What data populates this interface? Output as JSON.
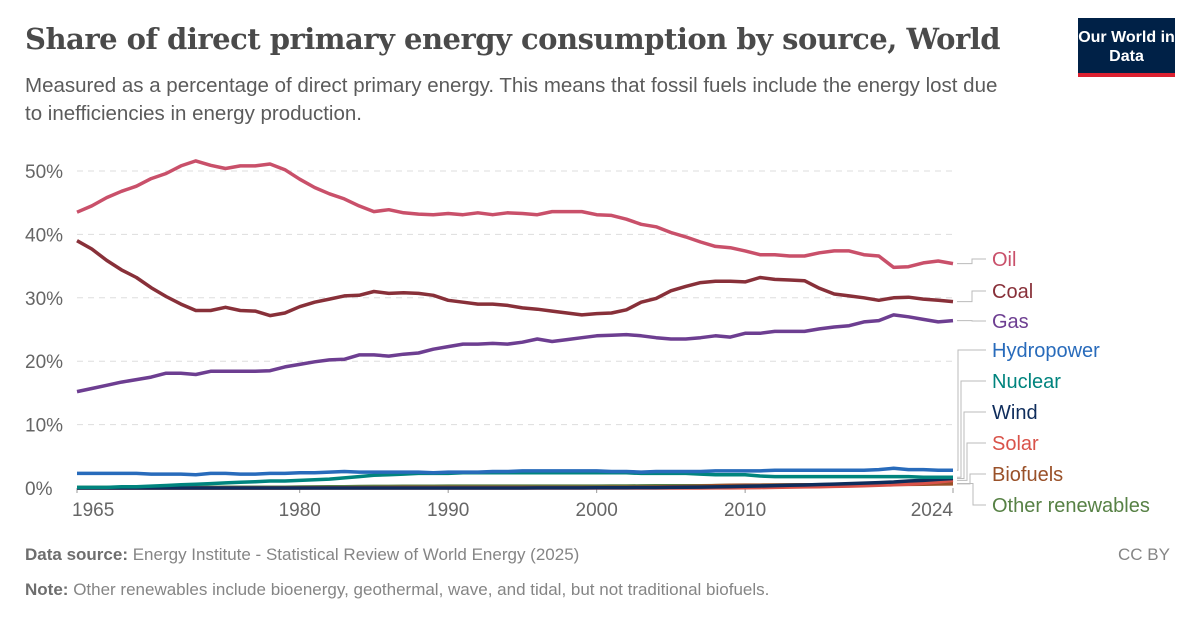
{
  "header": {
    "title": "Share of direct primary energy consumption by source, World",
    "subtitle": "Measured as a percentage of direct primary energy. This means that fossil fuels include the energy lost due to inefficiencies in energy production.",
    "logo_text": "Our World in Data"
  },
  "footer": {
    "source_label": "Data source:",
    "source_text": "Energy Institute - Statistical Review of World Energy (2025)",
    "note_label": "Note:",
    "note_text": "Other renewables include bioenergy, geothermal, wave, and tidal, but not traditional biofuels.",
    "license": "CC BY"
  },
  "chart_data": {
    "type": "line",
    "title": "Share of direct primary energy consumption by source, World",
    "xlim": [
      1965,
      2024
    ],
    "ylim": [
      0,
      50
    ],
    "x_ticks": [
      "1965",
      "1980",
      "1990",
      "2000",
      "2010",
      "2024"
    ],
    "y_ticks": [
      "0%",
      "10%",
      "20%",
      "30%",
      "40%",
      "50%"
    ],
    "grid": "horizontal dashed",
    "legend": "right, labels at line ends",
    "x_start": 1965,
    "series": [
      {
        "name": "Oil",
        "color": "#c9506a",
        "values": [
          43.5,
          44.5,
          45.8,
          46.8,
          47.6,
          48.8,
          49.6,
          50.8,
          51.6,
          50.9,
          50.4,
          50.8,
          50.8,
          51.1,
          50.2,
          48.7,
          47.4,
          46.4,
          45.6,
          44.5,
          43.6,
          43.9,
          43.4,
          43.2,
          43.1,
          43.3,
          43.1,
          43.4,
          43.1,
          43.4,
          43.3,
          43.1,
          43.6,
          43.6,
          43.6,
          43.1,
          43.0,
          42.4,
          41.6,
          41.2,
          40.3,
          39.6,
          38.8,
          38.1,
          37.9,
          37.4,
          36.8,
          36.8,
          36.6,
          36.6,
          37.1,
          37.4,
          37.4,
          36.8,
          36.6,
          34.8,
          34.9,
          35.5,
          35.8,
          35.4
        ]
      },
      {
        "name": "Coal",
        "color": "#883039",
        "values": [
          39.0,
          37.7,
          35.9,
          34.4,
          33.2,
          31.6,
          30.2,
          29.0,
          28.0,
          28.0,
          28.5,
          28.0,
          27.9,
          27.2,
          27.6,
          28.6,
          29.3,
          29.8,
          30.3,
          30.4,
          31.0,
          30.7,
          30.8,
          30.7,
          30.4,
          29.6,
          29.3,
          29.0,
          29.0,
          28.8,
          28.4,
          28.2,
          27.9,
          27.6,
          27.3,
          27.5,
          27.6,
          28.1,
          29.3,
          29.9,
          31.1,
          31.8,
          32.4,
          32.6,
          32.6,
          32.5,
          33.2,
          32.9,
          32.8,
          32.7,
          31.5,
          30.6,
          30.3,
          30.0,
          29.6,
          30.0,
          30.1,
          29.8,
          29.6,
          29.4
        ]
      },
      {
        "name": "Gas",
        "color": "#6d3e91",
        "values": [
          15.2,
          15.7,
          16.2,
          16.7,
          17.1,
          17.5,
          18.1,
          18.1,
          17.9,
          18.4,
          18.4,
          18.4,
          18.4,
          18.5,
          19.1,
          19.5,
          19.9,
          20.2,
          20.3,
          21.0,
          21.0,
          20.8,
          21.1,
          21.3,
          21.9,
          22.3,
          22.7,
          22.7,
          22.8,
          22.7,
          23.0,
          23.5,
          23.1,
          23.4,
          23.7,
          24.0,
          24.1,
          24.2,
          24.0,
          23.7,
          23.5,
          23.5,
          23.7,
          24.0,
          23.8,
          24.4,
          24.4,
          24.7,
          24.7,
          24.7,
          25.1,
          25.4,
          25.6,
          26.2,
          26.4,
          27.3,
          27.0,
          26.6,
          26.2,
          26.4
        ]
      },
      {
        "name": "Hydropower",
        "color": "#286bbb",
        "values": [
          2.3,
          2.3,
          2.3,
          2.3,
          2.3,
          2.2,
          2.2,
          2.2,
          2.1,
          2.3,
          2.3,
          2.2,
          2.2,
          2.3,
          2.3,
          2.4,
          2.4,
          2.5,
          2.6,
          2.5,
          2.5,
          2.5,
          2.5,
          2.5,
          2.4,
          2.5,
          2.5,
          2.5,
          2.6,
          2.6,
          2.7,
          2.7,
          2.7,
          2.7,
          2.7,
          2.7,
          2.6,
          2.6,
          2.5,
          2.6,
          2.6,
          2.6,
          2.6,
          2.7,
          2.7,
          2.7,
          2.7,
          2.8,
          2.8,
          2.8,
          2.8,
          2.8,
          2.8,
          2.8,
          2.9,
          3.1,
          2.9,
          2.9,
          2.8,
          2.8
        ]
      },
      {
        "name": "Nuclear",
        "color": "#00847e",
        "values": [
          0.1,
          0.1,
          0.1,
          0.2,
          0.2,
          0.3,
          0.4,
          0.5,
          0.6,
          0.7,
          0.8,
          0.9,
          1.0,
          1.1,
          1.1,
          1.2,
          1.3,
          1.4,
          1.6,
          1.8,
          2.0,
          2.1,
          2.2,
          2.3,
          2.3,
          2.3,
          2.4,
          2.4,
          2.4,
          2.4,
          2.4,
          2.4,
          2.4,
          2.4,
          2.4,
          2.4,
          2.4,
          2.4,
          2.3,
          2.3,
          2.3,
          2.3,
          2.2,
          2.1,
          2.1,
          2.1,
          1.9,
          1.8,
          1.8,
          1.8,
          1.8,
          1.8,
          1.8,
          1.8,
          1.8,
          1.8,
          1.8,
          1.7,
          1.7,
          1.7
        ]
      },
      {
        "name": "Wind",
        "color": "#0f2d5c",
        "values": [
          0,
          0,
          0,
          0,
          0,
          0,
          0,
          0,
          0,
          0,
          0,
          0,
          0,
          0,
          0,
          0,
          0,
          0,
          0,
          0,
          0,
          0,
          0,
          0,
          0,
          0,
          0,
          0,
          0,
          0,
          0,
          0.01,
          0.01,
          0.02,
          0.02,
          0.03,
          0.04,
          0.05,
          0.06,
          0.07,
          0.09,
          0.11,
          0.14,
          0.17,
          0.22,
          0.27,
          0.32,
          0.38,
          0.43,
          0.48,
          0.55,
          0.62,
          0.7,
          0.78,
          0.85,
          0.95,
          1.1,
          1.2,
          1.35,
          1.5
        ]
      },
      {
        "name": "Solar",
        "color": "#d9534a",
        "values": [
          0,
          0,
          0,
          0,
          0,
          0,
          0,
          0,
          0,
          0,
          0,
          0,
          0,
          0,
          0,
          0,
          0,
          0,
          0,
          0,
          0,
          0,
          0,
          0,
          0,
          0,
          0,
          0,
          0,
          0,
          0,
          0,
          0,
          0,
          0,
          0,
          0,
          0,
          0,
          0,
          0,
          0,
          0,
          0.01,
          0.02,
          0.04,
          0.07,
          0.1,
          0.14,
          0.17,
          0.2,
          0.25,
          0.3,
          0.35,
          0.42,
          0.5,
          0.6,
          0.75,
          0.95,
          1.2
        ]
      },
      {
        "name": "Biofuels",
        "color": "#9a5129",
        "values": [
          0,
          0,
          0,
          0,
          0,
          0,
          0,
          0,
          0,
          0,
          0,
          0,
          0,
          0,
          0,
          0.02,
          0.03,
          0.04,
          0.05,
          0.06,
          0.07,
          0.08,
          0.09,
          0.1,
          0.1,
          0.1,
          0.1,
          0.1,
          0.1,
          0.1,
          0.1,
          0.1,
          0.1,
          0.1,
          0.1,
          0.1,
          0.11,
          0.12,
          0.14,
          0.16,
          0.19,
          0.24,
          0.3,
          0.38,
          0.42,
          0.46,
          0.46,
          0.47,
          0.49,
          0.5,
          0.51,
          0.52,
          0.53,
          0.55,
          0.57,
          0.56,
          0.57,
          0.6,
          0.63,
          0.65
        ]
      },
      {
        "name": "Other renewables",
        "color": "#578145",
        "values": [
          0.1,
          0.1,
          0.1,
          0.1,
          0.1,
          0.1,
          0.1,
          0.1,
          0.1,
          0.1,
          0.12,
          0.12,
          0.12,
          0.12,
          0.12,
          0.15,
          0.17,
          0.19,
          0.21,
          0.23,
          0.25,
          0.26,
          0.27,
          0.28,
          0.29,
          0.3,
          0.3,
          0.3,
          0.3,
          0.3,
          0.3,
          0.3,
          0.3,
          0.3,
          0.3,
          0.3,
          0.31,
          0.32,
          0.33,
          0.34,
          0.35,
          0.36,
          0.37,
          0.38,
          0.4,
          0.42,
          0.44,
          0.46,
          0.48,
          0.5,
          0.52,
          0.54,
          0.56,
          0.58,
          0.6,
          0.62,
          0.64,
          0.66,
          0.68,
          0.7
        ]
      }
    ]
  }
}
